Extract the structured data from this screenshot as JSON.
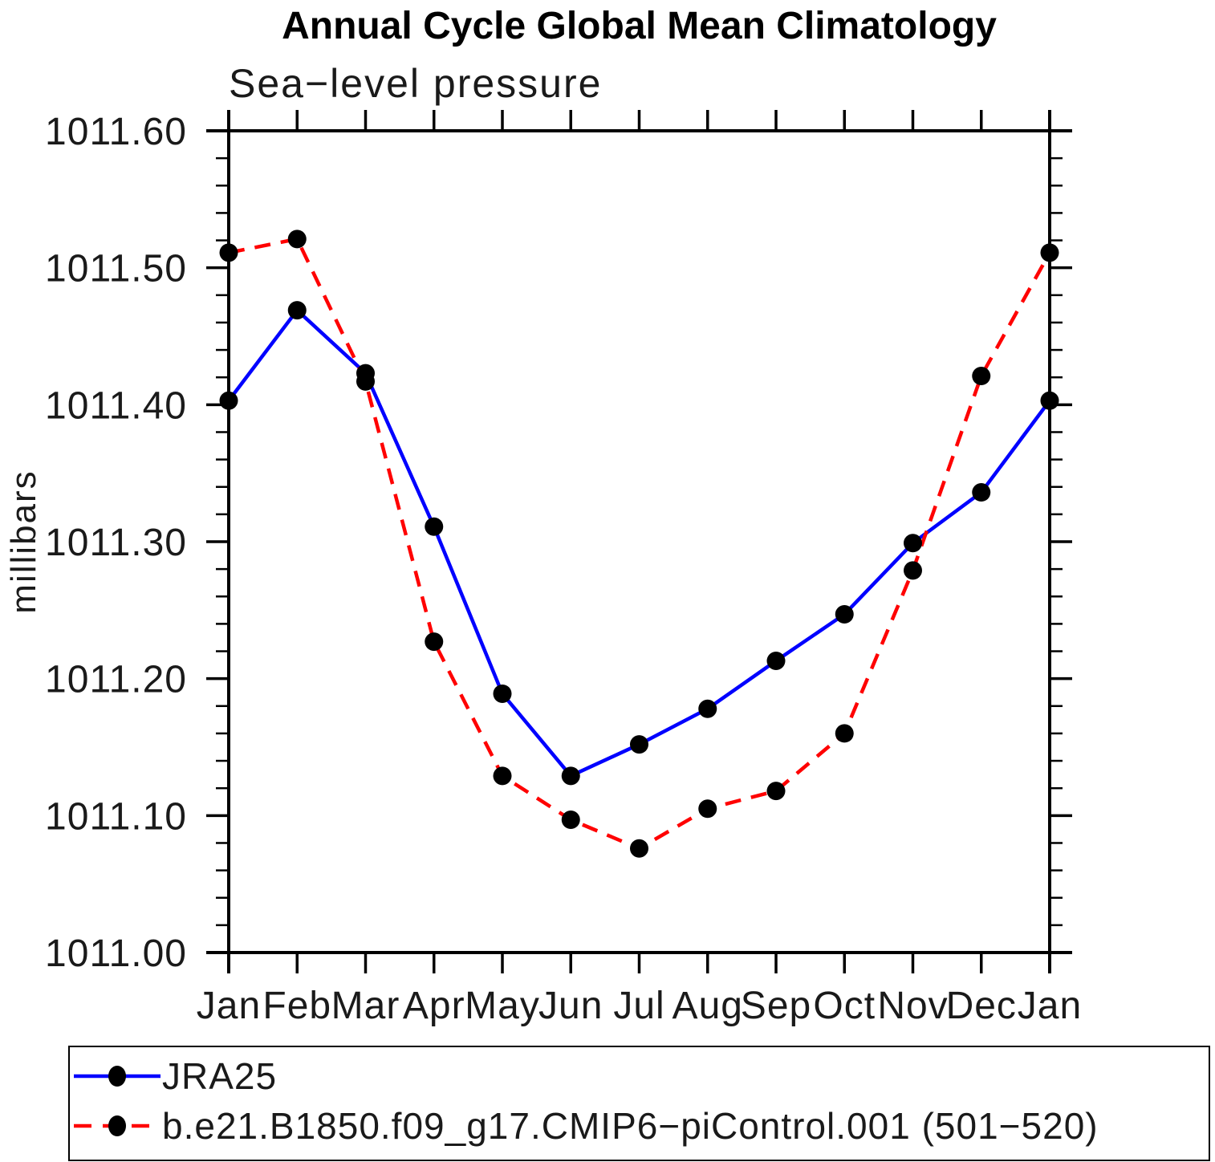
{
  "title": "Annual Cycle Global Mean Climatology",
  "subtitle": "Sea−level pressure",
  "y_axis_title": "millibars",
  "chart_data": {
    "type": "line",
    "x_tick_labels": [
      "Jan",
      "Feb",
      "Mar",
      "Apr",
      "May",
      "Jun",
      "Jul",
      "Aug",
      "Sep",
      "Oct",
      "Nov",
      "Dec",
      "Jan"
    ],
    "y_tick_labels": [
      "1011.00",
      "1011.10",
      "1011.20",
      "1011.30",
      "1011.40",
      "1011.50",
      "1011.60"
    ],
    "ylim": [
      1011.0,
      1011.6
    ],
    "y_major_interval": 0.1,
    "y_minor_interval": 0.02,
    "grid": false,
    "legend_position": "bottom-left-box",
    "marker_color": "#000000",
    "series": [
      {
        "name": "JRA25",
        "color": "#0000ff",
        "line_style": "solid",
        "marker": "filled-black-circle",
        "values": [
          1011.403,
          1011.469,
          1011.423,
          1011.311,
          1011.189,
          1011.129,
          1011.152,
          1011.178,
          1011.213,
          1011.247,
          1011.299,
          1011.336,
          1011.403
        ]
      },
      {
        "name": "b.e21.B1850.f09_g17.CMIP6−piControl.001 (501−520)",
        "color": "#ff0000",
        "line_style": "dashed",
        "marker": "filled-black-circle",
        "values": [
          1011.511,
          1011.521,
          1011.417,
          1011.227,
          1011.129,
          1011.097,
          1011.076,
          1011.105,
          1011.118,
          1011.16,
          1011.279,
          1011.421,
          1011.511
        ]
      }
    ]
  },
  "legend": {
    "items": [
      {
        "label": "JRA25"
      },
      {
        "label": "b.e21.B1850.f09_g17.CMIP6−piControl.001 (501−520)"
      }
    ]
  }
}
